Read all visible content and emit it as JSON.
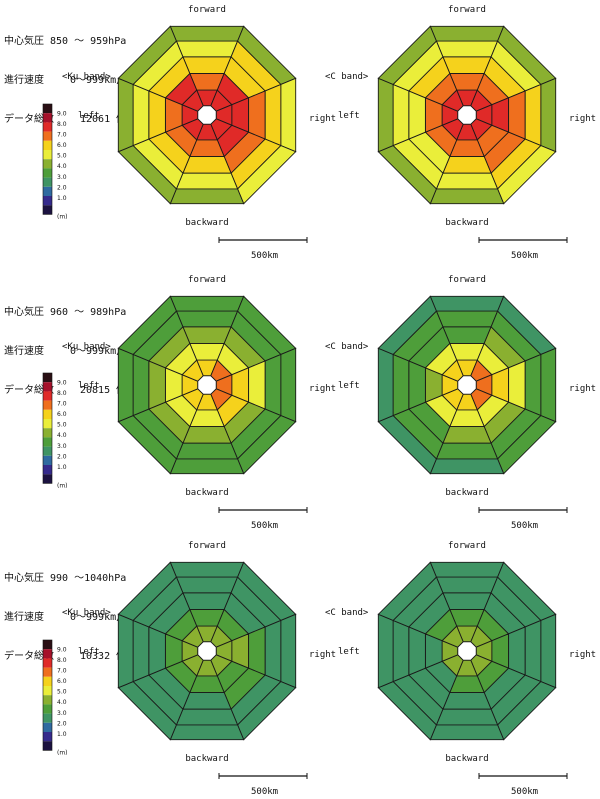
{
  "color_scale": {
    "labels": [
      "9.0",
      "8.0",
      "7.0",
      "6.0",
      "5.0",
      "4.0",
      "3.0",
      "2.0",
      "1.0"
    ],
    "unit": "(m)",
    "colors": [
      "#2a0f14",
      "#a6102a",
      "#e8242a",
      "#f06a1e",
      "#f4c020",
      "#e8e83a",
      "#8ab030",
      "#3c9a3e",
      "#3a8a6a",
      "#2f6aa0",
      "#352a8c",
      "#1c1240"
    ]
  },
  "panels": [
    {
      "header": {
        "pressure": "中心気圧 850 ～ 959hPa",
        "speed_label": "進行速度",
        "speed_value": "0～999km/h",
        "count_label": "データ総数",
        "count_value": "12061 個"
      },
      "charts": [
        {
          "band": "<Ku band>",
          "forward": "forward",
          "backward": "backward",
          "left": "left",
          "right": "right",
          "scale": "500km"
        },
        {
          "band": "<C band>",
          "forward": "forward",
          "backward": "backward",
          "left": "left",
          "right": "right",
          "scale": "500km"
        }
      ]
    },
    {
      "header": {
        "pressure": "中心気圧 960 ～ 989hPa",
        "speed_label": "進行速度",
        "speed_value": "0～999km/h",
        "count_label": "データ総数",
        "count_value": "20815 個"
      },
      "charts": [
        {
          "band": "<Ku band>",
          "forward": "forward",
          "backward": "backward",
          "left": "left",
          "right": "right",
          "scale": "500km"
        },
        {
          "band": "<C band>",
          "forward": "forward",
          "backward": "backward",
          "left": "left",
          "right": "right",
          "scale": "500km"
        }
      ]
    },
    {
      "header": {
        "pressure": "中心気圧 990 ～1040hPa",
        "speed_label": "進行速度",
        "speed_value": "0～999km/h",
        "count_label": "データ総数",
        "count_value": "10332 個"
      },
      "charts": [
        {
          "band": "<Ku band>",
          "forward": "forward",
          "backward": "backward",
          "left": "left",
          "right": "right",
          "scale": "500km"
        },
        {
          "band": "<C band>",
          "forward": "forward",
          "backward": "backward",
          "left": "left",
          "right": "right",
          "scale": "500km"
        }
      ]
    }
  ],
  "chart_data": [
    {
      "type": "heatmap",
      "band": "Ku band",
      "pressure_range": "850 ～ 959hPa",
      "rings": 5,
      "sectors": 8,
      "sector_order": [
        "forward",
        "forward-right",
        "right",
        "backward-right",
        "backward",
        "backward-left",
        "left",
        "forward-left"
      ],
      "values": [
        [
          7.5,
          7.6,
          7.8,
          7.5,
          7.0,
          7.2,
          7.4,
          7.6
        ],
        [
          6.8,
          7.0,
          7.5,
          7.0,
          6.5,
          6.8,
          6.9,
          7.0
        ],
        [
          5.8,
          6.2,
          6.9,
          6.4,
          5.8,
          6.0,
          5.9,
          6.0
        ],
        [
          5.3,
          5.5,
          6.0,
          5.8,
          5.3,
          5.3,
          5.2,
          5.3
        ],
        [
          4.6,
          4.8,
          5.4,
          5.4,
          4.8,
          4.6,
          4.6,
          4.6
        ]
      ]
    },
    {
      "type": "heatmap",
      "band": "C band",
      "pressure_range": "850 ～ 959hPa",
      "rings": 5,
      "sectors": 8,
      "sector_order": [
        "forward",
        "forward-right",
        "right",
        "backward-right",
        "backward",
        "backward-left",
        "left",
        "forward-left"
      ],
      "values": [
        [
          7.4,
          7.5,
          7.6,
          7.5,
          7.2,
          7.2,
          7.3,
          7.4
        ],
        [
          6.6,
          6.8,
          7.0,
          6.9,
          6.6,
          6.4,
          6.4,
          6.5
        ],
        [
          5.5,
          5.8,
          6.3,
          6.3,
          5.8,
          5.4,
          5.4,
          5.5
        ],
        [
          5.2,
          5.3,
          5.7,
          5.6,
          5.3,
          5.0,
          5.1,
          5.2
        ],
        [
          4.4,
          4.5,
          4.8,
          5.2,
          4.8,
          4.3,
          4.3,
          4.4
        ]
      ]
    },
    {
      "type": "heatmap",
      "band": "Ku band",
      "pressure_range": "960 ～ 989hPa",
      "rings": 5,
      "sectors": 8,
      "sector_order": [
        "forward",
        "forward-right",
        "right",
        "backward-right",
        "backward",
        "backward-left",
        "left",
        "forward-left"
      ],
      "values": [
        [
          6.2,
          6.4,
          6.6,
          6.4,
          6.2,
          6.2,
          6.2,
          6.2
        ],
        [
          5.2,
          5.4,
          5.6,
          5.5,
          5.3,
          5.2,
          5.2,
          5.2
        ],
        [
          4.5,
          4.6,
          5.2,
          4.8,
          4.5,
          4.5,
          4.4,
          4.4
        ],
        [
          3.8,
          3.9,
          4.2,
          4.0,
          3.9,
          3.8,
          3.8,
          3.8
        ],
        [
          3.6,
          3.6,
          3.7,
          3.7,
          3.6,
          3.6,
          3.6,
          3.6
        ]
      ]
    },
    {
      "type": "heatmap",
      "band": "C band",
      "pressure_range": "960 ～ 989hPa",
      "rings": 5,
      "sectors": 8,
      "sector_order": [
        "forward",
        "forward-right",
        "right",
        "backward-right",
        "backward",
        "backward-left",
        "left",
        "forward-left"
      ],
      "values": [
        [
          6.2,
          6.4,
          6.9,
          6.5,
          6.0,
          6.2,
          6.2,
          6.2
        ],
        [
          5.0,
          5.2,
          5.6,
          5.4,
          5.2,
          5.0,
          4.9,
          5.0
        ],
        [
          4.2,
          4.4,
          5.2,
          4.6,
          4.5,
          4.2,
          4.1,
          4.2
        ],
        [
          3.7,
          3.8,
          4.1,
          3.9,
          3.8,
          3.7,
          3.7,
          3.7
        ],
        [
          3.5,
          3.5,
          3.6,
          3.6,
          3.5,
          3.5,
          3.5,
          3.5
        ]
      ]
    },
    {
      "type": "heatmap",
      "band": "Ku band",
      "pressure_range": "990 ～1040hPa",
      "rings": 5,
      "sectors": 8,
      "sector_order": [
        "forward",
        "forward-right",
        "right",
        "backward-right",
        "backward",
        "backward-left",
        "left",
        "forward-left"
      ],
      "values": [
        [
          4.6,
          4.6,
          4.8,
          4.7,
          4.5,
          4.5,
          4.5,
          4.6
        ],
        [
          3.9,
          4.0,
          4.3,
          4.1,
          3.9,
          3.8,
          3.8,
          3.9
        ],
        [
          3.5,
          3.5,
          3.6,
          3.6,
          3.5,
          3.4,
          3.4,
          3.5
        ],
        [
          3.2,
          3.3,
          3.4,
          3.3,
          3.2,
          3.2,
          3.2,
          3.2
        ],
        [
          3.1,
          3.1,
          3.2,
          3.2,
          3.1,
          3.1,
          3.1,
          3.1
        ]
      ]
    },
    {
      "type": "heatmap",
      "band": "C band",
      "pressure_range": "990 ～1040hPa",
      "rings": 5,
      "sectors": 8,
      "sector_order": [
        "forward",
        "forward-right",
        "right",
        "backward-right",
        "backward",
        "backward-left",
        "left",
        "forward-left"
      ],
      "values": [
        [
          4.4,
          4.5,
          4.8,
          4.6,
          4.4,
          4.3,
          4.3,
          4.4
        ],
        [
          3.6,
          3.8,
          4.0,
          3.8,
          3.6,
          3.5,
          3.5,
          3.6
        ],
        [
          3.3,
          3.4,
          3.5,
          3.4,
          3.3,
          3.3,
          3.3,
          3.3
        ],
        [
          3.2,
          3.2,
          3.3,
          3.2,
          3.2,
          3.2,
          3.2,
          3.2
        ],
        [
          3.1,
          3.1,
          3.1,
          3.1,
          3.1,
          3.1,
          3.1,
          3.1
        ]
      ]
    }
  ]
}
